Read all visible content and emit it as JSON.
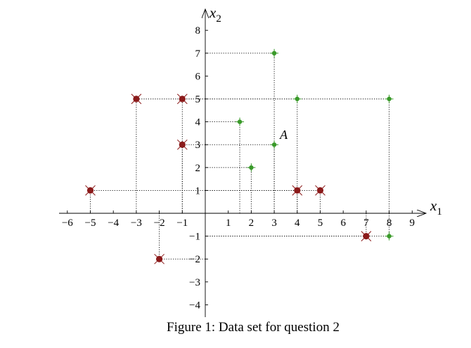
{
  "caption": "Figure 1: Data set for question 2",
  "chart_data": {
    "type": "scatter",
    "xlabel": "x",
    "xlabel_sub": "1",
    "ylabel": "x",
    "ylabel_sub": "2",
    "xlim": [
      -6.6,
      9.5
    ],
    "ylim": [
      -4.5,
      8.8
    ],
    "x_ticks": [
      -6,
      -5,
      -4,
      -3,
      -2,
      -1,
      1,
      2,
      3,
      4,
      5,
      6,
      7,
      8,
      9
    ],
    "x_tick_labels": [
      "−6",
      "−5",
      "−4",
      "−3",
      "−2",
      "−1",
      "1",
      "2",
      "3",
      "4",
      "5",
      "6",
      "7",
      "8",
      "9"
    ],
    "y_ticks": [
      -4,
      -3,
      -2,
      -1,
      1,
      2,
      3,
      4,
      5,
      6,
      7,
      8
    ],
    "y_tick_labels": [
      "−4",
      "−3",
      "−2",
      "−1",
      "1",
      "2",
      "3",
      "4",
      "5",
      "6",
      "7",
      "8"
    ],
    "grid": false,
    "projection_lines": true,
    "colors": {
      "positive": "#3a9a2a",
      "negative": "#8b1a1a"
    },
    "series": [
      {
        "marker": "plus",
        "color": "#3a9a2a",
        "points": [
          [
            3,
            7
          ],
          [
            4,
            5
          ],
          [
            8,
            5
          ],
          [
            1.5,
            4
          ],
          [
            3,
            3
          ],
          [
            2,
            2
          ],
          [
            8,
            -1
          ]
        ]
      },
      {
        "marker": "cross",
        "color": "#8b1a1a",
        "points": [
          [
            -3,
            5
          ],
          [
            -1,
            5
          ],
          [
            -1,
            3
          ],
          [
            -5,
            1
          ],
          [
            4,
            1
          ],
          [
            5,
            1
          ],
          [
            7,
            -1
          ],
          [
            -2,
            -2
          ]
        ]
      }
    ],
    "annotations": [
      {
        "text": "A",
        "x": 3,
        "y": 3
      }
    ]
  }
}
